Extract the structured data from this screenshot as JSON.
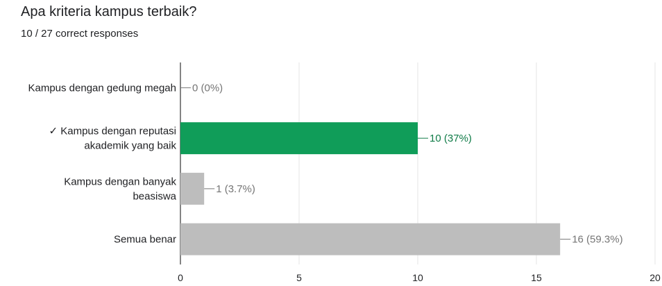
{
  "question": {
    "title": "Apa kriteria kampus terbaik?",
    "summary": "10 / 27 correct responses"
  },
  "colors": {
    "correct_bar": "#109D59",
    "correct_text": "#0F7B47",
    "other_bar": "#BDBDBD",
    "label_text": "#202124",
    "value_text": "#757575",
    "grid": "#E6E6E6",
    "axis": "#333333"
  },
  "chart_data": {
    "type": "bar",
    "orientation": "horizontal",
    "categories": [
      {
        "lines": [
          "Kampus dengan gedung megah"
        ],
        "correct": false
      },
      {
        "lines": [
          "✓ Kampus dengan reputasi",
          "akademik yang baik"
        ],
        "correct": true
      },
      {
        "lines": [
          "Kampus dengan banyak",
          "beasiswa"
        ],
        "correct": false
      },
      {
        "lines": [
          "Semua benar"
        ],
        "correct": false
      }
    ],
    "values": [
      0,
      10,
      1,
      16
    ],
    "data_labels": [
      "0 (0%)",
      "10 (37%)",
      "1 (3.7%)",
      "16 (59.3%)"
    ],
    "xlim": [
      0,
      20
    ],
    "xticks": [
      0,
      5,
      10,
      15,
      20
    ],
    "grid": true
  }
}
